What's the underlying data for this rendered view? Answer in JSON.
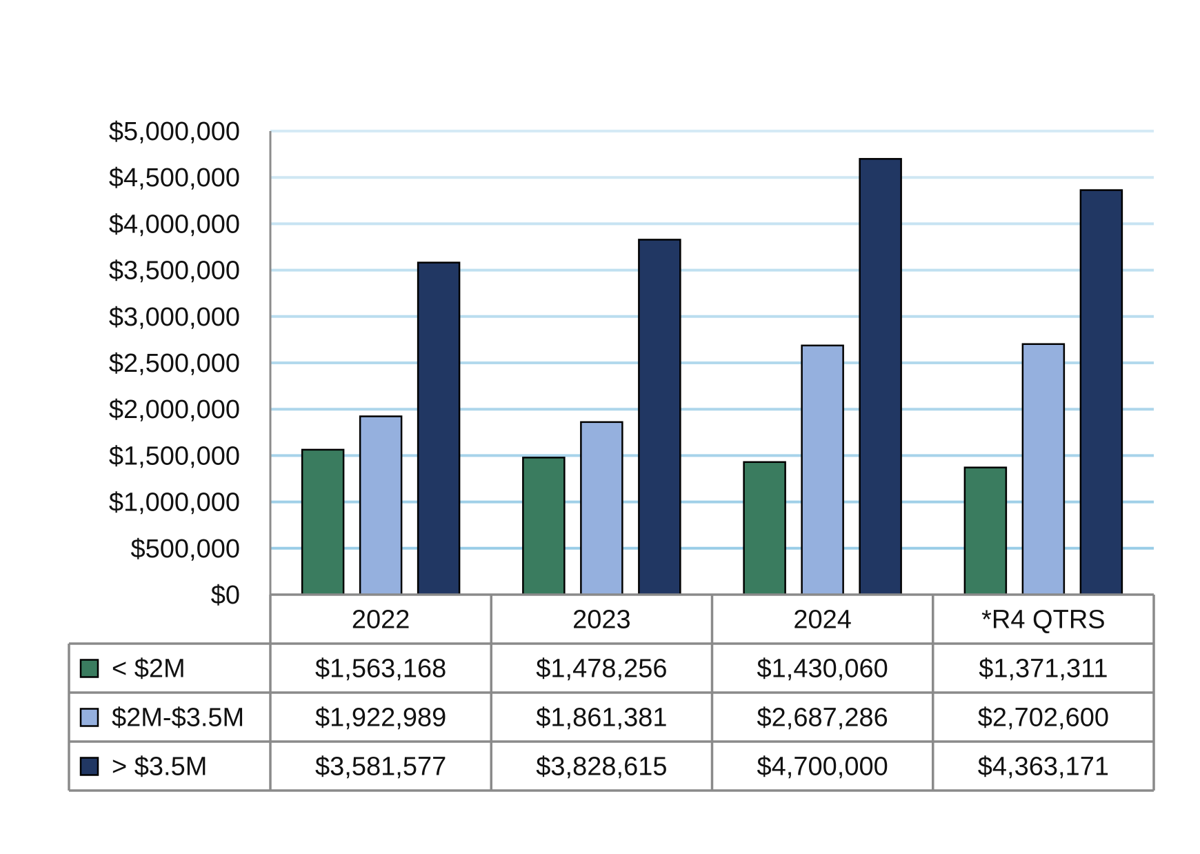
{
  "chart_data": {
    "type": "bar",
    "title": "",
    "xlabel": "",
    "ylabel": "",
    "categories": [
      "2022",
      "2023",
      "2024",
      "*R4 QTRS"
    ],
    "ylim": [
      0,
      5000000
    ],
    "yticks": [
      0,
      500000,
      1000000,
      1500000,
      2000000,
      2500000,
      3000000,
      3500000,
      4000000,
      4500000,
      5000000
    ],
    "ytick_labels": [
      "$0",
      "$500,000",
      "$1,000,000",
      "$1,500,000",
      "$2,000,000",
      "$2,500,000",
      "$3,000,000",
      "$3,500,000",
      "$4,000,000",
      "$4,500,000",
      "$5,000,000"
    ],
    "grid": true,
    "legend": "data-table",
    "series": [
      {
        "name": "< $2M",
        "color": "#3a7c5f",
        "values": [
          1563168,
          1478256,
          1430060,
          1371311
        ],
        "labels": [
          "$1,563,168",
          "$1,478,256",
          "$1,430,060",
          "$1,371,311"
        ]
      },
      {
        "name": "$2M-$3.5M",
        "color": "#95b0de",
        "values": [
          1922989,
          1861381,
          2687286,
          2702600
        ],
        "labels": [
          "$1,922,989",
          "$1,861,381",
          "$2,687,286",
          "$2,702,600"
        ]
      },
      {
        "name": "> $3.5M",
        "color": "#213763",
        "values": [
          3581577,
          3828615,
          4700000,
          4363171
        ],
        "labels": [
          "$3,581,577",
          "$3,828,615",
          "$4,700,000",
          "$4,363,171"
        ]
      }
    ]
  }
}
